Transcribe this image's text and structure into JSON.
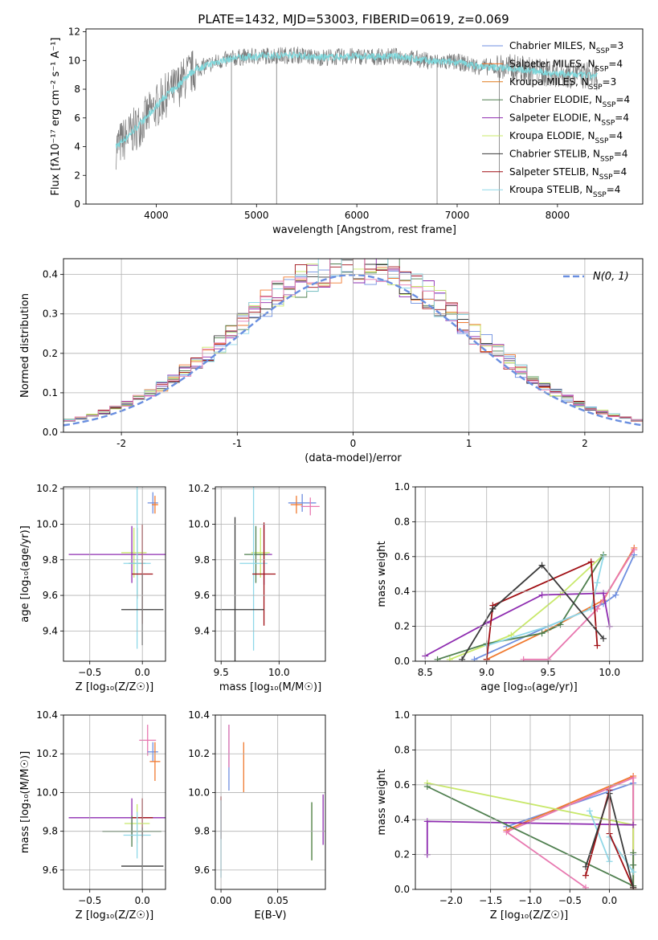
{
  "figure_title": "PLATE=1432, MJD=53003, FIBERID=0619, z=0.069",
  "legend_colors": [
    "#6f8fe0",
    "#f07a30",
    "#e07c1c",
    "#4f7f4f",
    "#8e2cb0",
    "#c8e86a",
    "#3a3a3a",
    "#a00f14",
    "#8fd8e8",
    "#e878b0",
    "#6db0d8",
    "#7a7a7a"
  ],
  "chart_data": [
    {
      "id": "spectrum",
      "type": "line",
      "title": "PLATE=1432, MJD=53003, FIBERID=0619, z=0.069",
      "xlabel": "wavelength [Angstrom, rest frame]",
      "ylabel": "Flux [fλ10⁻¹⁷ erg cm⁻² s⁻¹ A⁻¹]",
      "xlim": [
        3300,
        8850
      ],
      "ylim": [
        0,
        12.2
      ],
      "xticks": [
        4000,
        5000,
        6000,
        7000,
        8000
      ],
      "yticks": [
        0,
        2,
        4,
        6,
        8,
        10,
        12
      ],
      "grid": false,
      "legend_position": "top-right",
      "legend": [
        {
          "label": "Chabrier MILES, N",
          "sub": "SSP",
          "tail": "=3",
          "color": "#6f8fe0"
        },
        {
          "label": "Salpeter MILES, N",
          "sub": "SSP",
          "tail": "=4",
          "color": "#f07a30"
        },
        {
          "label": "Kroupa MILES, N",
          "sub": "SSP",
          "tail": "=3",
          "color": "#e07c1c"
        },
        {
          "label": "Chabrier ELODIE, N",
          "sub": "SSP",
          "tail": "=4",
          "color": "#4f7f4f"
        },
        {
          "label": "Salpeter ELODIE, N",
          "sub": "SSP",
          "tail": "=4",
          "color": "#8e2cb0"
        },
        {
          "label": "Kroupa ELODIE, N",
          "sub": "SSP",
          "tail": "=4",
          "color": "#c8e86a"
        },
        {
          "label": "Chabrier STELIB, N",
          "sub": "SSP",
          "tail": "=4",
          "color": "#3a3a3a"
        },
        {
          "label": "Salpeter STELIB, N",
          "sub": "SSP",
          "tail": "=4",
          "color": "#a00f14"
        },
        {
          "label": "Kroupa STELIB, N",
          "sub": "SSP",
          "tail": "=4",
          "color": "#8fd8e8"
        }
      ],
      "observed_color": "#7a7a7a",
      "model_color": "#7fd8dc",
      "continuum": {
        "x": [
          3600,
          3700,
          3800,
          3900,
          4000,
          4100,
          4200,
          4300,
          4400,
          4600,
          4800,
          5000,
          5200,
          5400,
          5600,
          5800,
          6000,
          6200,
          6400,
          6600,
          6800,
          7000,
          7200,
          7400,
          7600,
          7800,
          8000,
          8200,
          8400
        ],
        "y": [
          4.0,
          4.6,
          5.3,
          6.0,
          6.8,
          7.6,
          8.1,
          8.9,
          9.4,
          9.9,
          10.2,
          10.3,
          10.35,
          10.4,
          10.2,
          10.25,
          10.3,
          10.25,
          10.3,
          10.1,
          9.9,
          9.9,
          9.6,
          9.5,
          9.45,
          9.2,
          9.1,
          9.0,
          8.9
        ]
      }
    },
    {
      "id": "residuals",
      "type": "histogram",
      "xlabel": "(data-model)/error",
      "ylabel": "Normed distribution",
      "xlim": [
        -2.5,
        2.5
      ],
      "ylim": [
        0,
        0.44
      ],
      "xticks": [
        -2,
        -1,
        0,
        1,
        2
      ],
      "yticks": [
        0.0,
        0.1,
        0.2,
        0.3,
        0.4
      ],
      "grid": true,
      "legend": [
        {
          "label": "N(0, 1)",
          "color": "#6a8fe0",
          "style": "dashed"
        }
      ],
      "legend_position": "top-right",
      "bin_width": 0.1,
      "bin_start": -2.5,
      "series_colors": [
        "#6f8fe0",
        "#f07a30",
        "#4f7f4f",
        "#8e2cb0",
        "#c8e86a",
        "#3a3a3a",
        "#a00f14",
        "#8fd8e8",
        "#e878b0"
      ]
    },
    {
      "id": "age_vs_Z",
      "type": "errorbar",
      "xlabel": "Z [log₁₀(Z/Z☉)]",
      "ylabel": "age  [log₁₀(age/yr)]",
      "xlim": [
        -0.75,
        0.22
      ],
      "ylim": [
        9.23,
        10.21
      ],
      "xticks": [
        -0.5,
        0.0
      ],
      "yticks": [
        9.4,
        9.6,
        9.8,
        10.0,
        10.2
      ],
      "grid": true,
      "points": [
        {
          "x": 0.1,
          "xerr": 0.05,
          "y": 10.12,
          "yerr": 0.06,
          "color": "#6f8fe0"
        },
        {
          "x": 0.12,
          "xerr": 0.03,
          "y": 10.11,
          "yerr": 0.05,
          "color": "#f07a30"
        },
        {
          "x": -0.08,
          "xerr": 0.12,
          "y": 9.84,
          "yerr": 0.14,
          "color": "#c8e86a"
        },
        {
          "x": -0.1,
          "xerr": 0.6,
          "y": 9.83,
          "yerr": 0.16,
          "color": "#8e2cb0"
        },
        {
          "x": -0.05,
          "xerr": 0.08,
          "y": 9.78,
          "yerr": 0.2,
          "color": "#4f7f4f"
        },
        {
          "x": -0.05,
          "xerr": 0.13,
          "y": 9.78,
          "yerr": 0.48,
          "color": "#8fd8e8"
        },
        {
          "x": 0.0,
          "xerr": 0.1,
          "y": 9.72,
          "yerr": 0.28,
          "color": "#a00f14"
        },
        {
          "x": 0.0,
          "xerr": 0.2,
          "y": 9.52,
          "yerr": 0.2,
          "color": "#3a3a3a"
        }
      ]
    },
    {
      "id": "age_vs_mass",
      "type": "errorbar",
      "xlabel": "mass [log₁₀(M/M☉)]",
      "ylabel": "",
      "xlim": [
        9.45,
        10.4
      ],
      "ylim": [
        9.23,
        10.21
      ],
      "xticks": [
        9.5,
        10.0
      ],
      "yticks": [
        9.4,
        9.6,
        9.8,
        10.0,
        10.2
      ],
      "grid": true,
      "points": [
        {
          "x": 10.2,
          "xerr": 0.12,
          "y": 10.12,
          "yerr": 0.05,
          "color": "#6f8fe0"
        },
        {
          "x": 10.15,
          "xerr": 0.05,
          "y": 10.11,
          "yerr": 0.05,
          "color": "#f07a30"
        },
        {
          "x": 10.27,
          "xerr": 0.08,
          "y": 10.1,
          "yerr": 0.05,
          "color": "#e878b0"
        },
        {
          "x": 9.84,
          "xerr": 0.08,
          "y": 9.84,
          "yerr": 0.14,
          "color": "#c8e86a"
        },
        {
          "x": 9.87,
          "xerr": 0.07,
          "y": 9.83,
          "yerr": 0.17,
          "color": "#8e2cb0"
        },
        {
          "x": 9.8,
          "xerr": 0.1,
          "y": 9.83,
          "yerr": 0.16,
          "color": "#4f7f4f"
        },
        {
          "x": 9.78,
          "xerr": 0.12,
          "y": 9.78,
          "yerr": 0.49,
          "color": "#8fd8e8"
        },
        {
          "x": 9.87,
          "xerr": 0.1,
          "y": 9.72,
          "yerr": 0.29,
          "color": "#a00f14"
        },
        {
          "x": 9.62,
          "xerr": 0.25,
          "y": 9.52,
          "yerr": 0.52,
          "color": "#3a3a3a"
        }
      ]
    },
    {
      "id": "weight_vs_age",
      "type": "line",
      "xlabel": "age  [log₁₀(age/yr)]",
      "ylabel": "mass weight",
      "xlim": [
        8.42,
        10.27
      ],
      "ylim": [
        0,
        1.0
      ],
      "xticks": [
        8.5,
        9.0,
        9.5,
        10.0
      ],
      "yticks": [
        0.0,
        0.2,
        0.4,
        0.6,
        0.8,
        1.0
      ],
      "grid": true,
      "series": [
        {
          "color": "#6f8fe0",
          "x": [
            8.9,
            9.5,
            9.95,
            10.05,
            10.2
          ],
          "y": [
            0.01,
            0.2,
            0.33,
            0.38,
            0.61
          ]
        },
        {
          "color": "#f07a30",
          "x": [
            9.0,
            9.5,
            9.95,
            10.2
          ],
          "y": [
            0.01,
            0.18,
            0.35,
            0.65
          ]
        },
        {
          "color": "#e878b0",
          "x": [
            9.3,
            9.5,
            9.9,
            10.2
          ],
          "y": [
            0.01,
            0.01,
            0.3,
            0.64
          ]
        },
        {
          "color": "#c8e86a",
          "x": [
            8.7,
            9.2,
            9.6,
            9.95
          ],
          "y": [
            0.01,
            0.15,
            0.38,
            0.61
          ]
        },
        {
          "color": "#8e2cb0",
          "x": [
            8.5,
            9.0,
            9.45,
            9.95,
            10.0
          ],
          "y": [
            0.03,
            0.22,
            0.38,
            0.39,
            0.2
          ]
        },
        {
          "color": "#4f7f4f",
          "x": [
            8.6,
            9.0,
            9.45,
            9.6,
            9.95
          ],
          "y": [
            0.01,
            0.1,
            0.16,
            0.21,
            0.61
          ]
        },
        {
          "color": "#8fd8e8",
          "x": [
            9.0,
            9.5,
            9.85,
            9.9,
            9.95
          ],
          "y": [
            0.09,
            0.2,
            0.3,
            0.45,
            0.6
          ]
        },
        {
          "color": "#a00f14",
          "x": [
            9.0,
            9.05,
            9.85,
            9.9
          ],
          "y": [
            0.01,
            0.32,
            0.57,
            0.09
          ]
        },
        {
          "color": "#3a3a3a",
          "x": [
            8.8,
            9.05,
            9.45,
            9.95
          ],
          "y": [
            0.01,
            0.3,
            0.55,
            0.13
          ]
        }
      ]
    },
    {
      "id": "mass_vs_Z",
      "type": "errorbar",
      "xlabel": "Z [log₁₀(Z/Z☉)]",
      "ylabel": "mass [log₁₀(M/M☉)]",
      "xlim": [
        -0.75,
        0.22
      ],
      "ylim": [
        9.5,
        10.4
      ],
      "xticks": [
        -0.5,
        0.0
      ],
      "yticks": [
        9.6,
        9.8,
        10.0,
        10.2,
        10.4
      ],
      "grid": true,
      "points": [
        {
          "x": 0.05,
          "xerr": 0.08,
          "y": 10.27,
          "yerr": 0.08,
          "color": "#e878b0"
        },
        {
          "x": 0.1,
          "xerr": 0.05,
          "y": 10.21,
          "yerr": 0.05,
          "color": "#6f8fe0"
        },
        {
          "x": 0.12,
          "xerr": 0.05,
          "y": 10.16,
          "yerr": 0.1,
          "color": "#f07a30"
        },
        {
          "x": -0.1,
          "xerr": 0.6,
          "y": 9.87,
          "yerr": 0.1,
          "color": "#8e2cb0"
        },
        {
          "x": 0.0,
          "xerr": 0.1,
          "y": 9.87,
          "yerr": 0.1,
          "color": "#a00f14"
        },
        {
          "x": -0.05,
          "xerr": 0.12,
          "y": 9.84,
          "yerr": 0.1,
          "color": "#c8e86a"
        },
        {
          "x": -0.1,
          "xerr": 0.28,
          "y": 9.8,
          "yerr": 0.08,
          "color": "#4f7f4f"
        },
        {
          "x": -0.05,
          "xerr": 0.13,
          "y": 9.78,
          "yerr": 0.12,
          "color": "#8fd8e8"
        },
        {
          "x": 0.0,
          "xerr": 0.2,
          "y": 9.62,
          "yerr": 0.2,
          "color": "#3a3a3a"
        }
      ]
    },
    {
      "id": "mass_vs_ebv",
      "type": "errorbar",
      "xlabel": "E(B-V)",
      "ylabel": "",
      "xlim": [
        -0.005,
        0.092
      ],
      "ylim": [
        9.5,
        10.4
      ],
      "xticks": [
        0.0,
        0.05
      ],
      "tick_labels": [
        "0.00",
        "0.05"
      ],
      "yticks": [
        9.6,
        9.8,
        10.0,
        10.2,
        10.4
      ],
      "grid": true,
      "points": [
        {
          "x": 0.007,
          "xerr": 0,
          "y": 10.18,
          "yerr": 0.17,
          "color": "#6f8fe0"
        },
        {
          "x": 0.007,
          "xerr": 0,
          "y": 10.24,
          "yerr": 0.11,
          "color": "#e878b0"
        },
        {
          "x": 0.02,
          "xerr": 0,
          "y": 10.13,
          "yerr": 0.13,
          "color": "#f07a30"
        },
        {
          "x": 0.0,
          "xerr": 0,
          "y": 9.87,
          "yerr": 0.11,
          "color": "#a00f14"
        },
        {
          "x": 0.0,
          "xerr": 0,
          "y": 9.76,
          "yerr": 0.2,
          "color": "#8fd8e8"
        },
        {
          "x": 0.08,
          "xerr": 0,
          "y": 9.8,
          "yerr": 0.15,
          "color": "#c8e86a"
        },
        {
          "x": 0.08,
          "xerr": 0,
          "y": 9.8,
          "yerr": 0.15,
          "color": "#4f7f4f"
        },
        {
          "x": 0.09,
          "xerr": 0,
          "y": 9.86,
          "yerr": 0.13,
          "color": "#8e2cb0"
        }
      ]
    },
    {
      "id": "weight_vs_Z",
      "type": "line",
      "xlabel": "Z [log₁₀(Z/Z☉)]",
      "ylabel": "mass weight",
      "xlim": [
        -2.45,
        0.42
      ],
      "ylim": [
        0,
        1.0
      ],
      "xticks": [
        -2.0,
        -1.5,
        -1.0,
        -0.5,
        0.0
      ],
      "yticks": [
        0.0,
        0.2,
        0.4,
        0.6,
        0.8,
        1.0
      ],
      "grid": true,
      "series": [
        {
          "color": "#6f8fe0",
          "x": [
            -1.3,
            0.3,
            0.3,
            0.3
          ],
          "y": [
            0.36,
            0.61,
            0.2,
            0.01
          ]
        },
        {
          "color": "#f07a30",
          "x": [
            -1.3,
            0.3,
            0.3
          ],
          "y": [
            0.34,
            0.65,
            0.0
          ]
        },
        {
          "color": "#e878b0",
          "x": [
            -0.3,
            -1.3,
            0.3,
            0.3
          ],
          "y": [
            0.01,
            0.33,
            0.64,
            0.02
          ]
        },
        {
          "color": "#c8e86a",
          "x": [
            -2.3,
            0.3,
            0.3
          ],
          "y": [
            0.61,
            0.37,
            0.01
          ]
        },
        {
          "color": "#8e2cb0",
          "x": [
            -2.3,
            -2.3,
            0.3
          ],
          "y": [
            0.2,
            0.39,
            0.37
          ]
        },
        {
          "color": "#4f7f4f",
          "x": [
            -2.3,
            0.3,
            0.3,
            0.3
          ],
          "y": [
            0.59,
            0.02,
            0.21,
            0.14
          ]
        },
        {
          "color": "#8fd8e8",
          "x": [
            -0.25,
            0.0,
            0.0,
            0.3
          ],
          "y": [
            0.45,
            0.16,
            0.3,
            0.1
          ]
        },
        {
          "color": "#a00f14",
          "x": [
            -0.3,
            0.0,
            0.0,
            0.3
          ],
          "y": [
            0.08,
            0.57,
            0.32,
            0.01
          ]
        },
        {
          "color": "#3a3a3a",
          "x": [
            -0.3,
            0.0,
            0.3
          ],
          "y": [
            0.13,
            0.55,
            0.01
          ]
        }
      ]
    }
  ]
}
